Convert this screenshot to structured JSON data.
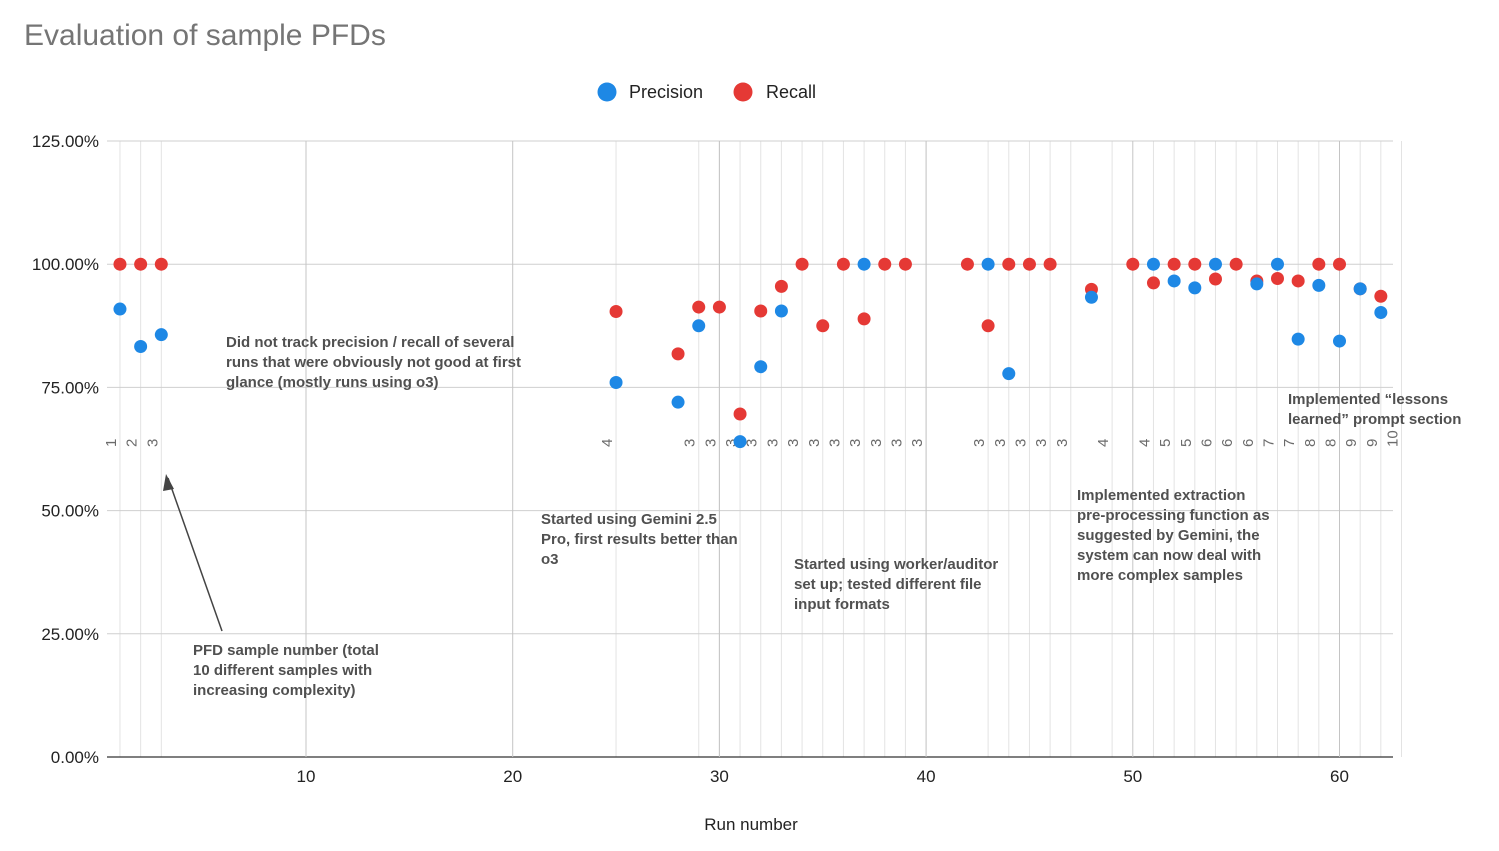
{
  "chart_data": {
    "type": "scatter",
    "title": "Evaluation of sample PFDs",
    "xlabel": "Run number",
    "ylabel": "",
    "xlim": [
      0.5,
      63
    ],
    "ylim": [
      0,
      125
    ],
    "y_tick_labels": [
      "0.00%",
      "25.00%",
      "50.00%",
      "75.00%",
      "100.00%",
      "125.00%"
    ],
    "x_tick_labels": [
      "10",
      "20",
      "30",
      "40",
      "50",
      "60"
    ],
    "legend_position": "top-center",
    "grid": true,
    "series": [
      {
        "name": "Precision",
        "color": "#1e88e5",
        "points": [
          [
            1,
            90.9
          ],
          [
            2,
            83.3
          ],
          [
            3,
            85.7
          ],
          [
            25,
            76.0
          ],
          [
            28,
            72.0
          ],
          [
            29,
            87.5
          ],
          [
            31,
            64.0
          ],
          [
            32,
            79.2
          ],
          [
            33,
            90.5
          ],
          [
            37,
            100
          ],
          [
            43,
            100
          ],
          [
            44,
            77.8
          ],
          [
            48,
            93.3
          ],
          [
            51,
            100
          ],
          [
            52,
            96.6
          ],
          [
            53,
            95.2
          ],
          [
            54,
            100
          ],
          [
            56,
            96.0
          ],
          [
            57,
            100
          ],
          [
            58,
            84.8
          ],
          [
            59,
            95.7
          ],
          [
            60,
            84.4
          ],
          [
            61,
            95.0
          ],
          [
            62,
            90.2
          ]
        ]
      },
      {
        "name": "Recall",
        "color": "#e53935",
        "points": [
          [
            1,
            100
          ],
          [
            2,
            100
          ],
          [
            3,
            100
          ],
          [
            25,
            90.4
          ],
          [
            28,
            81.8
          ],
          [
            29,
            91.3
          ],
          [
            30,
            91.3
          ],
          [
            31,
            69.6
          ],
          [
            32,
            90.5
          ],
          [
            33,
            95.5
          ],
          [
            34,
            100
          ],
          [
            35,
            87.5
          ],
          [
            36,
            100
          ],
          [
            37,
            88.9
          ],
          [
            38,
            100
          ],
          [
            39,
            100
          ],
          [
            42,
            100
          ],
          [
            43,
            87.5
          ],
          [
            44,
            100
          ],
          [
            45,
            100
          ],
          [
            46,
            100
          ],
          [
            48,
            94.9
          ],
          [
            50,
            100
          ],
          [
            51,
            96.2
          ],
          [
            52,
            100
          ],
          [
            53,
            100
          ],
          [
            54,
            97.0
          ],
          [
            55,
            100
          ],
          [
            56,
            96.6
          ],
          [
            57,
            97.1
          ],
          [
            58,
            96.6
          ],
          [
            59,
            100
          ],
          [
            60,
            100
          ],
          [
            61,
            95.0
          ],
          [
            62,
            93.5
          ]
        ]
      }
    ],
    "sample_numbers": [
      [
        1,
        "1"
      ],
      [
        2,
        "2"
      ],
      [
        3,
        "3"
      ],
      [
        25,
        "4"
      ],
      [
        29,
        "3"
      ],
      [
        30,
        "3"
      ],
      [
        31,
        "3"
      ],
      [
        32,
        "3"
      ],
      [
        33,
        "3"
      ],
      [
        34,
        "3"
      ],
      [
        35,
        "3"
      ],
      [
        36,
        "3"
      ],
      [
        37,
        "3"
      ],
      [
        38,
        "3"
      ],
      [
        39,
        "3"
      ],
      [
        40,
        "3"
      ],
      [
        43,
        "3"
      ],
      [
        44,
        "3"
      ],
      [
        45,
        "3"
      ],
      [
        46,
        "3"
      ],
      [
        47,
        "3"
      ],
      [
        49,
        "4"
      ],
      [
        51,
        "4"
      ],
      [
        52,
        "5"
      ],
      [
        53,
        "5"
      ],
      [
        54,
        "6"
      ],
      [
        55,
        "6"
      ],
      [
        56,
        "6"
      ],
      [
        57,
        "7"
      ],
      [
        58,
        "7"
      ],
      [
        59,
        "8"
      ],
      [
        60,
        "8"
      ],
      [
        61,
        "9"
      ],
      [
        62,
        "9"
      ],
      [
        63,
        "10"
      ]
    ],
    "annotations": [
      {
        "text": "Did not track precision / recall of several\nruns that were obviously not good at first\nglance (mostly runs using o3)"
      },
      {
        "text": "Started using Gemini 2.5\nPro, first results better than\no3"
      },
      {
        "text": "Started using worker/auditor\nset up; tested different file\ninput formats"
      },
      {
        "text": "Implemented extraction\npre-processing function as\nsuggested by Gemini, the\nsystem can now deal with\nmore complex samples"
      },
      {
        "text": "Implemented “lessons\nlearned” prompt section"
      },
      {
        "text": "PFD sample number (total\n10 different samples with\nincreasing complexity)"
      }
    ]
  }
}
